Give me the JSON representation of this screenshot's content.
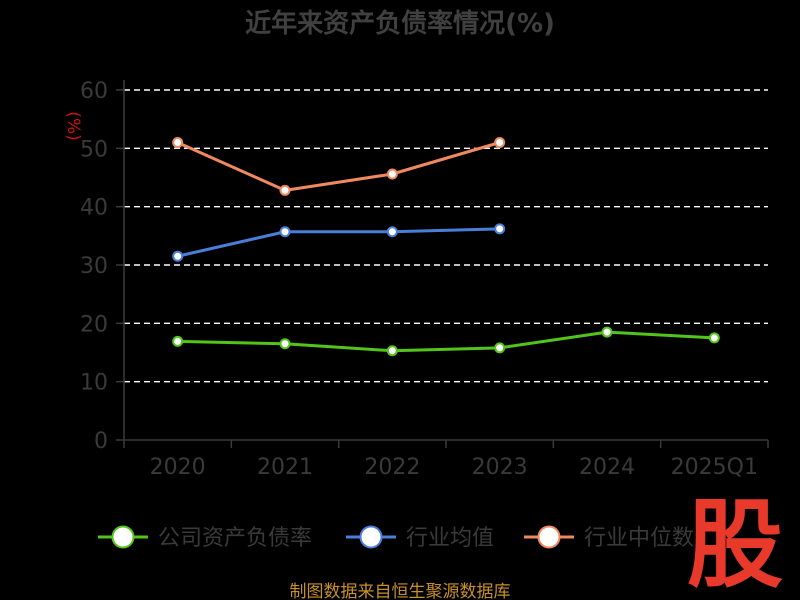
{
  "chart_data": {
    "type": "line",
    "title": "近年来资产负债率情况(%)",
    "ylabel": "(%)",
    "xlabel": "",
    "ylim": [
      0,
      60
    ],
    "yticks": [
      0,
      10,
      20,
      30,
      40,
      50,
      60
    ],
    "categories": [
      "2020",
      "2021",
      "2022",
      "2023",
      "2024",
      "2025Q1"
    ],
    "grid": true,
    "legend_position": "bottom",
    "series": [
      {
        "name": "公司资产负债率",
        "color": "#52c41a",
        "values": [
          16.9,
          16.5,
          15.3,
          15.8,
          18.5,
          17.5
        ]
      },
      {
        "name": "行业均值",
        "color": "#4a7fd9",
        "values": [
          31.5,
          35.7,
          35.7,
          36.2,
          null,
          null
        ]
      },
      {
        "name": "行业中位数",
        "color": "#ee8a5e",
        "values": [
          51.0,
          42.8,
          45.6,
          51.0,
          null,
          null
        ]
      }
    ]
  },
  "logo_text": "股",
  "source": "制图数据来自恒生聚源数据库"
}
